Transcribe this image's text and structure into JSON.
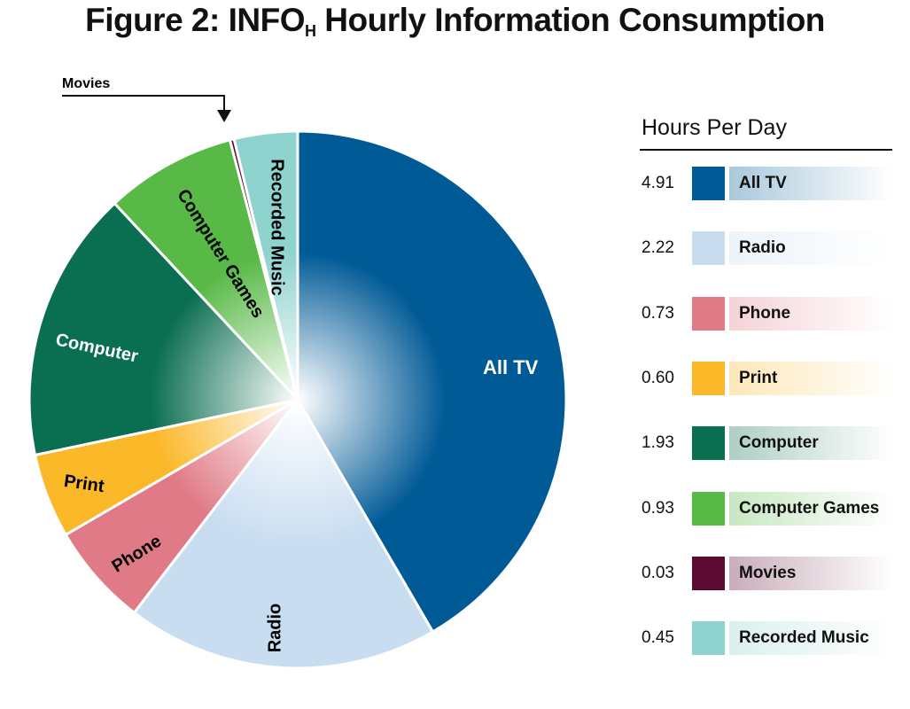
{
  "chart_data": {
    "type": "pie",
    "title_main": "Figure 2:  INFO",
    "title_sub": "H",
    "title_rest": " Hourly Information Consumption",
    "legend_title": "Hours Per Day",
    "legend_placement": "right",
    "unit": "Hours Per Day",
    "slices": [
      {
        "label": "All TV",
        "value": 4.91,
        "display": "4.91",
        "color": "#005a96"
      },
      {
        "label": "Radio",
        "value": 2.22,
        "display": "2.22",
        "color": "#c9ddf1"
      },
      {
        "label": "Phone",
        "value": 0.73,
        "display": "0.73",
        "color": "#e07a86"
      },
      {
        "label": "Print",
        "value": 0.6,
        "display": "0.60",
        "color": "#fbb829"
      },
      {
        "label": "Computer",
        "value": 1.93,
        "display": "1.93",
        "color": "#0a6e50"
      },
      {
        "label": "Computer Games",
        "value": 0.93,
        "display": "0.93",
        "color": "#58b947"
      },
      {
        "label": "Movies",
        "value": 0.03,
        "display": "0.03",
        "color": "#5c0a32"
      },
      {
        "label": "Recorded Music",
        "value": 0.45,
        "display": "0.45",
        "color": "#8fd3cf"
      }
    ]
  }
}
